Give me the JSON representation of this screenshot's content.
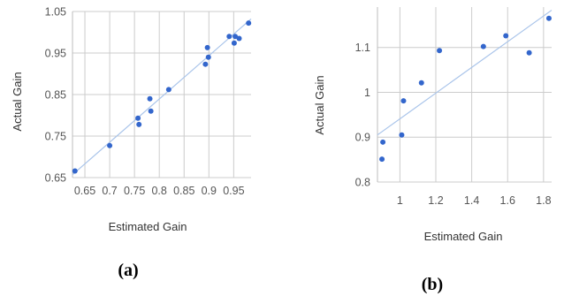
{
  "colors": {
    "point": "#3366cc",
    "trendline": "#a9c4ea",
    "grid": "#cccccc"
  },
  "chart_data": [
    {
      "type": "scatter",
      "caption": "(a)",
      "xlabel": "Estimated Gain",
      "ylabel": "Actual Gain",
      "xlim": [
        0.625,
        0.985
      ],
      "ylim": [
        0.65,
        1.05
      ],
      "xticks": [
        "0.65",
        "0.7",
        "0.75",
        "0.8",
        "0.85",
        "0.9",
        "0.95"
      ],
      "yticks": [
        "0.65",
        "0.75",
        "0.85",
        "0.95",
        "1.05"
      ],
      "trendline": true,
      "grid": true,
      "series": [
        {
          "points": [
            {
              "x": 0.63,
              "y": 0.666
            },
            {
              "x": 0.7,
              "y": 0.727
            },
            {
              "x": 0.757,
              "y": 0.793
            },
            {
              "x": 0.759,
              "y": 0.778
            },
            {
              "x": 0.781,
              "y": 0.84
            },
            {
              "x": 0.783,
              "y": 0.81
            },
            {
              "x": 0.819,
              "y": 0.862
            },
            {
              "x": 0.893,
              "y": 0.923
            },
            {
              "x": 0.897,
              "y": 0.963
            },
            {
              "x": 0.899,
              "y": 0.94
            },
            {
              "x": 0.941,
              "y": 0.99
            },
            {
              "x": 0.951,
              "y": 0.974
            },
            {
              "x": 0.953,
              "y": 0.99
            },
            {
              "x": 0.961,
              "y": 0.985
            },
            {
              "x": 0.98,
              "y": 1.022
            }
          ],
          "trend": [
            [
              0.625,
              0.657
            ],
            [
              0.985,
              1.032
            ]
          ]
        }
      ]
    },
    {
      "type": "scatter",
      "caption": "(b)",
      "xlabel": "Estimated Gain",
      "ylabel": "Actual Gain",
      "xlim": [
        0.875,
        1.845
      ],
      "ylim": [
        0.8,
        1.19
      ],
      "xticks": [
        "1",
        "1.2",
        "1.4",
        "1.6",
        "1.8"
      ],
      "yticks": [
        "0.8",
        "0.9",
        "1",
        "1.1"
      ],
      "trendline": true,
      "grid": true,
      "series": [
        {
          "points": [
            {
              "x": 0.9,
              "y": 0.851
            },
            {
              "x": 0.905,
              "y": 0.889
            },
            {
              "x": 1.01,
              "y": 0.905
            },
            {
              "x": 1.02,
              "y": 0.981
            },
            {
              "x": 1.12,
              "y": 1.021
            },
            {
              "x": 1.22,
              "y": 1.093
            },
            {
              "x": 1.465,
              "y": 1.102
            },
            {
              "x": 1.59,
              "y": 1.126
            },
            {
              "x": 1.72,
              "y": 1.088
            },
            {
              "x": 1.83,
              "y": 1.165
            }
          ],
          "trend": [
            [
              0.875,
              0.905
            ],
            [
              1.845,
              1.183
            ]
          ]
        }
      ]
    }
  ]
}
